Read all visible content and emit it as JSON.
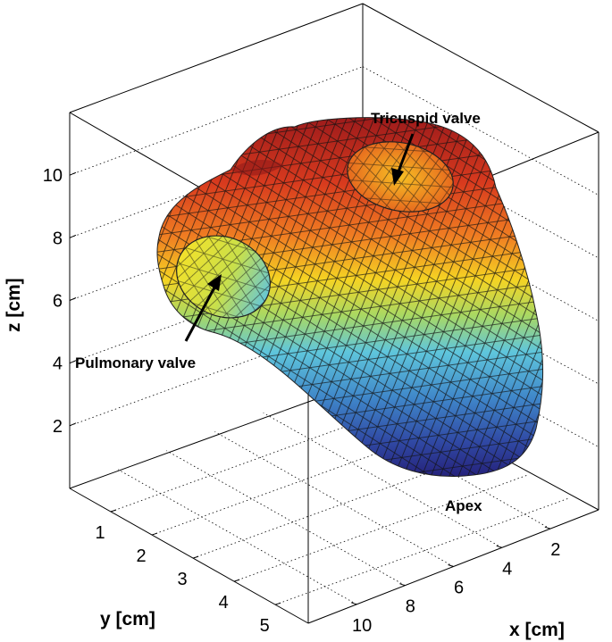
{
  "chart_data": {
    "type": "surface3d",
    "title": "",
    "colormap": "jet",
    "colormap_variable": "z",
    "axes": {
      "x": {
        "label": "x [cm]",
        "ticks": [
          2,
          4,
          6,
          8,
          10
        ],
        "range": [
          0,
          12
        ]
      },
      "y": {
        "label": "y [cm]",
        "ticks": [
          1,
          2,
          3,
          4,
          5
        ],
        "range": [
          0,
          5.8
        ]
      },
      "z": {
        "label": "z [cm]",
        "ticks": [
          2,
          4,
          6,
          8,
          10
        ],
        "range": [
          0,
          12
        ]
      }
    },
    "grid": true,
    "box": true,
    "annotations": [
      {
        "text": "Tricuspid valve",
        "points_to": "tricuspid-valve-opening"
      },
      {
        "text": "Pulmonary valve",
        "points_to": "pulmonary-valve-opening"
      },
      {
        "text": "Apex",
        "points_to": "apex"
      }
    ]
  }
}
